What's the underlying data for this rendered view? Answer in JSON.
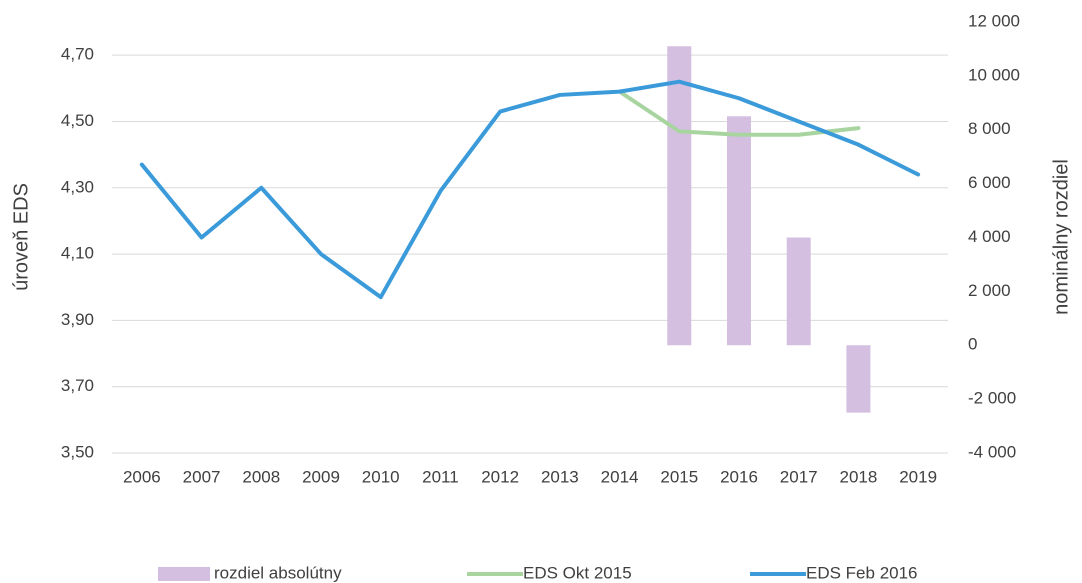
{
  "chart_data": {
    "type": "line",
    "y_label": "úroveň EDS",
    "y2_label": "nominálny rozdiel",
    "categories": [
      "2006",
      "2007",
      "2008",
      "2009",
      "2010",
      "2011",
      "2012",
      "2013",
      "2014",
      "2015",
      "2016",
      "2017",
      "2018",
      "2019"
    ],
    "series": [
      {
        "name": "rozdiel absolútny",
        "type": "bar",
        "axis": "y2",
        "color": "#d4bfe1",
        "values": [
          null,
          null,
          null,
          null,
          null,
          null,
          null,
          null,
          null,
          11100,
          8500,
          4000,
          -2500,
          null
        ]
      },
      {
        "name": "EDS Okt 2015",
        "type": "line",
        "color": "#a8d4a0",
        "values": [
          null,
          null,
          null,
          null,
          null,
          null,
          null,
          null,
          4.59,
          4.47,
          4.46,
          4.46,
          4.48,
          null
        ]
      },
      {
        "name": "EDS Feb 2016",
        "type": "line",
        "color": "#3b9bda",
        "values": [
          4.37,
          4.15,
          4.3,
          4.1,
          3.97,
          4.29,
          4.53,
          4.58,
          4.59,
          4.62,
          4.57,
          4.5,
          4.43,
          4.34
        ]
      }
    ],
    "ylim": [
      3.5,
      4.8
    ],
    "yticks": [
      {
        "value": 3.5,
        "label": "3,50"
      },
      {
        "value": 3.7,
        "label": "3,70"
      },
      {
        "value": 3.9,
        "label": "3,90"
      },
      {
        "value": 4.1,
        "label": "4,10"
      },
      {
        "value": 4.3,
        "label": "4,30"
      },
      {
        "value": 4.5,
        "label": "4,50"
      },
      {
        "value": 4.7,
        "label": "4,70"
      }
    ],
    "y2lim": [
      -4000,
      12000
    ],
    "y2ticks": [
      {
        "value": -4000,
        "label": "-4 000"
      },
      {
        "value": -2000,
        "label": "-2 000"
      },
      0,
      {
        "value": 2000,
        "label": "2 000"
      },
      {
        "value": 4000,
        "label": "4 000"
      },
      {
        "value": 6000,
        "label": "6 000"
      },
      {
        "value": 8000,
        "label": "8 000"
      },
      {
        "value": 10000,
        "label": "10 000"
      },
      {
        "value": 12000,
        "label": "12 000"
      }
    ],
    "grid": true,
    "legend": "bottom"
  }
}
